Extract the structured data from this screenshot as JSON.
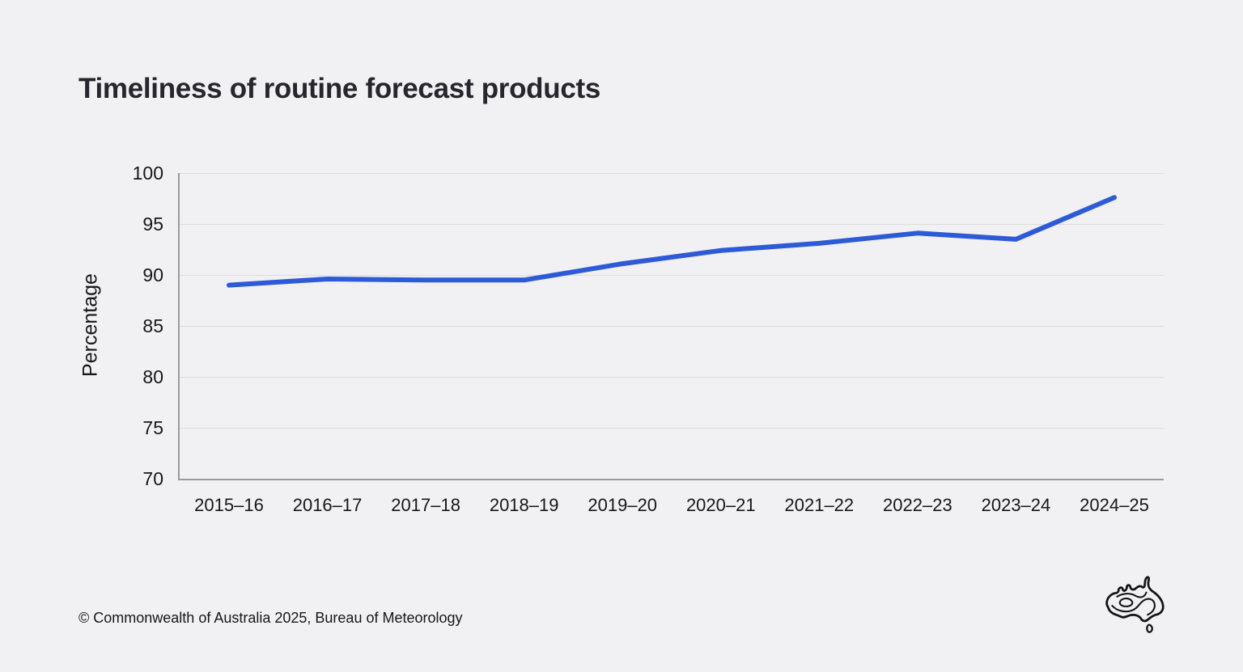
{
  "page_title": "Timeliness of routine forecast products",
  "footer": {
    "copyright": "© Commonwealth of Australia 2025, Bureau of Meteorology"
  },
  "logo": {
    "name": "bureau-of-meteorology-australia-logo"
  },
  "colors": {
    "background": "#f1f0f2",
    "line": "#2d5bd7",
    "axis": "#9b9b9b",
    "gridline": "#dcdbde",
    "title_text": "#26262c",
    "tick_text": "#17171c"
  },
  "chart_data": {
    "type": "line",
    "title": "Timeliness of routine forecast products",
    "categories": [
      "2015–16",
      "2016–17",
      "2017–18",
      "2018–19",
      "2019–20",
      "2020–21",
      "2021–22",
      "2022–23",
      "2023–24",
      "2024–25"
    ],
    "values": [
      89.0,
      89.6,
      89.5,
      89.5,
      91.1,
      92.4,
      93.1,
      94.1,
      93.5,
      97.6
    ],
    "xlabel": "",
    "ylabel": "Percentage",
    "ylim": [
      70,
      100
    ],
    "yticks": [
      70,
      75,
      80,
      85,
      90,
      95,
      100
    ],
    "grid": true,
    "legend": false,
    "line_color": "#2d5bd7",
    "line_width": 6
  }
}
